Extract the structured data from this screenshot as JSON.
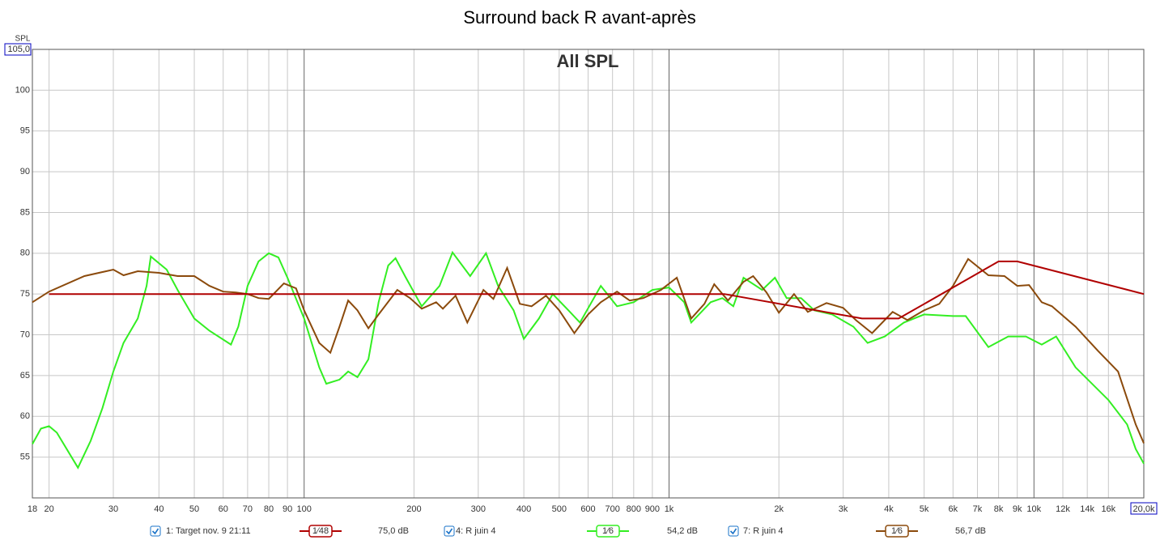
{
  "chart_data": {
    "type": "line",
    "title": "Surround back R avant-après",
    "subtitle": "All SPL",
    "y_label": "SPL",
    "log_x": true,
    "grid": true,
    "xlim": [
      18,
      20000
    ],
    "ylim": [
      50,
      105
    ],
    "yticks": [
      55,
      60,
      65,
      70,
      75,
      80,
      85,
      90,
      95,
      100,
      {
        "value": 105,
        "label": "105,0"
      }
    ],
    "xticks": [
      18,
      20,
      30,
      40,
      50,
      60,
      70,
      80,
      90,
      100,
      200,
      300,
      400,
      500,
      600,
      700,
      800,
      900,
      {
        "value": 1000,
        "label": "1k"
      },
      {
        "value": 2000,
        "label": "2k"
      },
      {
        "value": 3000,
        "label": "3k"
      },
      {
        "value": 4000,
        "label": "4k"
      },
      {
        "value": 5000,
        "label": "5k"
      },
      {
        "value": 6000,
        "label": "6k"
      },
      {
        "value": 7000,
        "label": "7k"
      },
      {
        "value": 8000,
        "label": "8k"
      },
      {
        "value": 9000,
        "label": "9k"
      },
      {
        "value": 10000,
        "label": "10k"
      },
      {
        "value": 12000,
        "label": "12k"
      },
      {
        "value": 14000,
        "label": "14k"
      },
      {
        "value": 16000,
        "label": "16k"
      },
      {
        "value": 20000,
        "label": "20,0k"
      }
    ],
    "series": [
      {
        "name": "1: Target nov. 9 21:11",
        "color": "#b00000",
        "smoothing": "1⁄48",
        "readout": {
          "value": 75.0,
          "label": "75,0 dB"
        },
        "x": [
          20,
          1418,
          3380,
          4260,
          8000,
          9000,
          20000
        ],
        "values": [
          75,
          75,
          72,
          72,
          79,
          79,
          75
        ]
      },
      {
        "name": "4: R juin 4",
        "color": "#33ee22",
        "smoothing": "1⁄6",
        "readout": {
          "value": 54.2,
          "label": "54,2 dB"
        },
        "x": [
          18,
          19,
          20,
          21,
          24,
          26,
          28,
          30,
          32,
          35,
          37,
          38,
          42,
          45,
          50,
          55,
          63,
          66,
          70,
          75,
          80,
          85,
          90,
          100,
          110,
          115,
          125,
          132,
          140,
          150,
          160,
          170,
          178,
          190,
          210,
          235,
          255,
          285,
          315,
          340,
          375,
          400,
          440,
          480,
          530,
          570,
          650,
          720,
          800,
          900,
          1000,
          1100,
          1150,
          1300,
          1400,
          1500,
          1600,
          1800,
          1950,
          2100,
          2300,
          2500,
          2800,
          3200,
          3500,
          3900,
          4400,
          5000,
          6000,
          6500,
          7500,
          8500,
          9500,
          10500,
          11500,
          13000,
          16000,
          18000,
          19000,
          20000
        ],
        "values": [
          56.6,
          58.5,
          58.8,
          58,
          53.7,
          57,
          61,
          65.5,
          69,
          72,
          76,
          79.6,
          78,
          75.5,
          72,
          70.5,
          68.8,
          71,
          76,
          79,
          80,
          79.5,
          77,
          72,
          66,
          64,
          64.5,
          65.5,
          64.8,
          67,
          74,
          78.5,
          79.4,
          77,
          73.5,
          76,
          80.1,
          77.2,
          80,
          76,
          73,
          69.5,
          72,
          75,
          73,
          71.5,
          76,
          73.5,
          74,
          75.5,
          75.8,
          74,
          71.5,
          74,
          74.5,
          73.5,
          77,
          75.5,
          77,
          74.5,
          74.5,
          73,
          72.5,
          71,
          69,
          69.8,
          71.5,
          72.5,
          72.3,
          72.3,
          68.5,
          69.8,
          69.8,
          68.8,
          69.8,
          66,
          62,
          59,
          56,
          54.2
        ]
      },
      {
        "name": "7: R juin 4",
        "color": "#8b4a0c",
        "smoothing": "1⁄6",
        "readout": {
          "value": 56.7,
          "label": "56,7 dB"
        },
        "x": [
          18,
          20,
          25,
          30,
          32,
          35,
          40,
          45,
          50,
          55,
          60,
          65,
          70,
          75,
          80,
          88,
          95,
          100,
          110,
          118,
          125,
          132,
          140,
          150,
          160,
          180,
          195,
          210,
          230,
          240,
          260,
          280,
          310,
          330,
          360,
          390,
          420,
          460,
          500,
          550,
          600,
          650,
          720,
          780,
          850,
          950,
          1050,
          1150,
          1250,
          1330,
          1450,
          1600,
          1700,
          1850,
          2000,
          2200,
          2400,
          2700,
          3000,
          3250,
          3600,
          4100,
          4500,
          5000,
          5500,
          6000,
          6600,
          7500,
          8300,
          9000,
          9700,
          10500,
          11200,
          13000,
          15000,
          17000,
          19000,
          20000
        ],
        "values": [
          74,
          75.3,
          77.2,
          78,
          77.3,
          77.8,
          77.6,
          77.2,
          77.2,
          76,
          75.3,
          75.2,
          75,
          74.5,
          74.4,
          76.3,
          75.7,
          73,
          69,
          67.8,
          71,
          74.2,
          73,
          70.8,
          72.5,
          75.5,
          74.5,
          73.2,
          74,
          73.2,
          74.8,
          71.5,
          75.5,
          74.4,
          78.2,
          73.8,
          73.5,
          74.8,
          73,
          70.2,
          72.5,
          74,
          75.3,
          74.2,
          74.5,
          75.5,
          77,
          72,
          73.8,
          76.2,
          74.2,
          76.5,
          77.2,
          75.2,
          72.7,
          75,
          72.8,
          73.9,
          73.3,
          71.8,
          70.2,
          72.8,
          71.8,
          73,
          73.8,
          76,
          79.3,
          77.3,
          77.2,
          76,
          76.1,
          74,
          73.5,
          71,
          68,
          65.5,
          59,
          56.7
        ]
      }
    ]
  }
}
